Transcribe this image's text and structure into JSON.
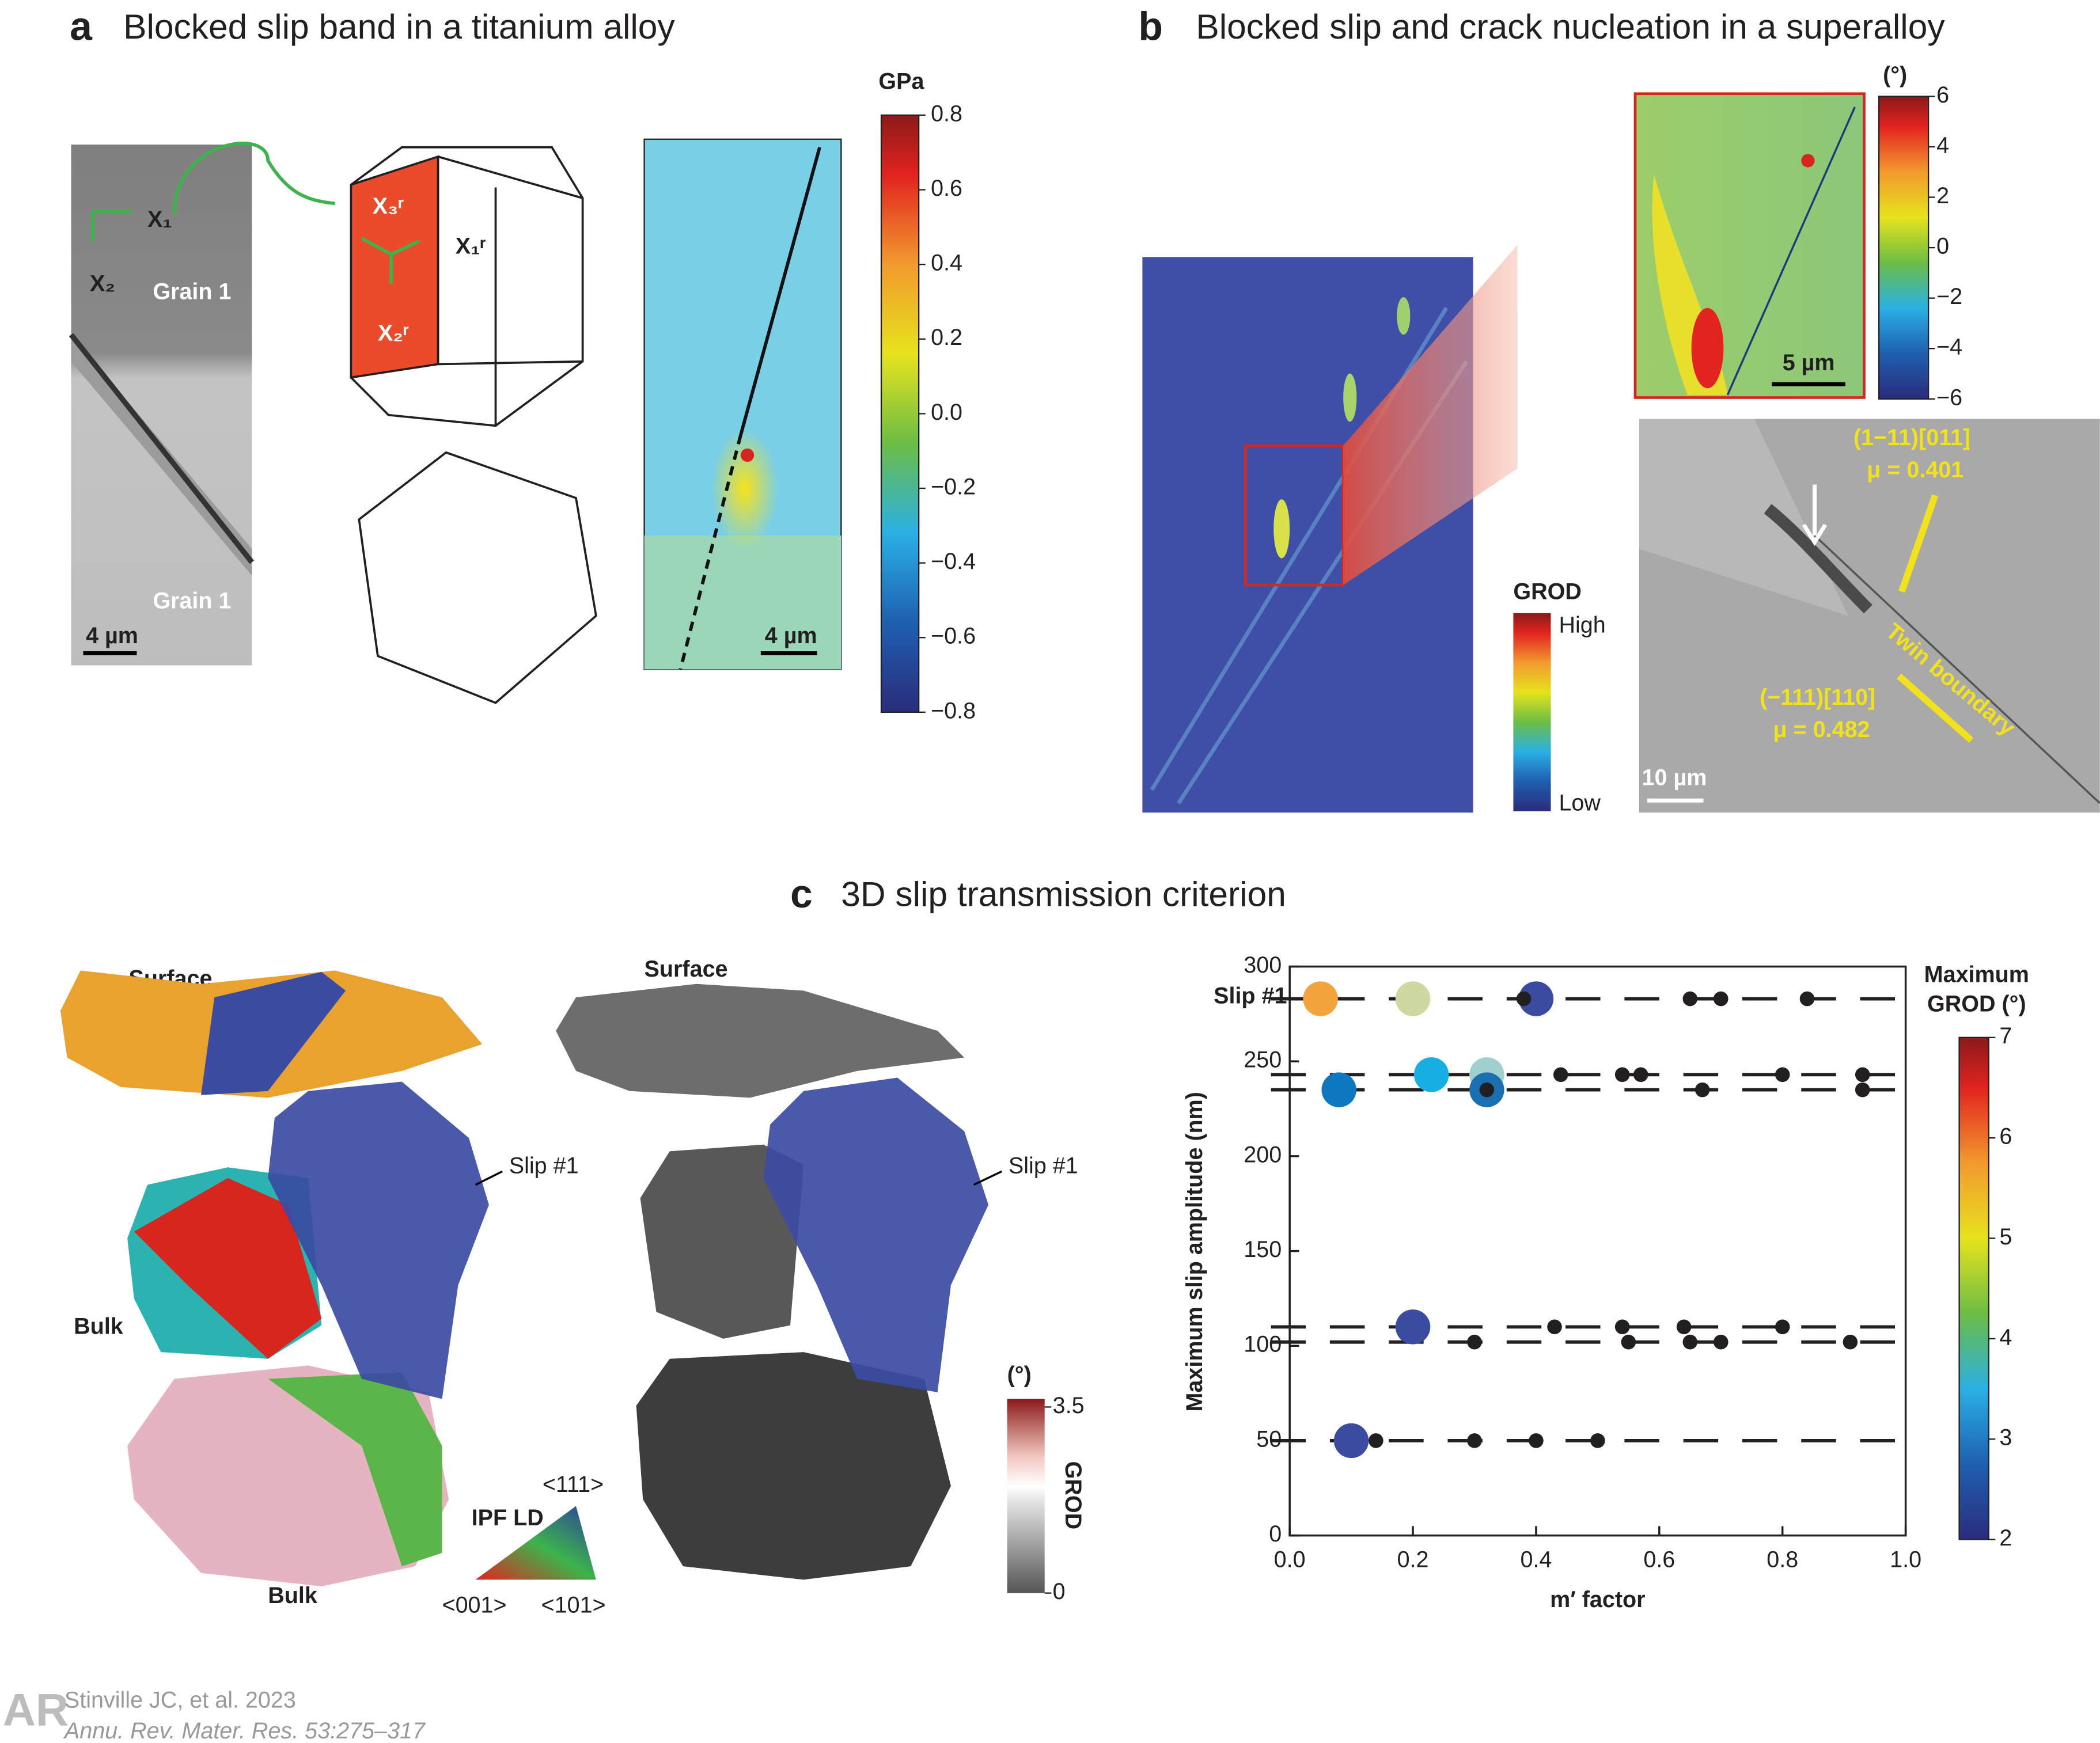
{
  "panel_a": {
    "label": "a",
    "title": "Blocked slip band in a titanium alloy",
    "axis_x1": "X₁",
    "axis_x2": "X₂",
    "grain_top": "Grain 1",
    "grain_bottom": "Grain 1",
    "scale_left": "4 µm",
    "crystal_x3": "X₃ʳ",
    "crystal_x1": "X₁ʳ",
    "crystal_x2": "X₂ʳ",
    "scale_right": "4 µm",
    "colorbar": {
      "title": "GPa",
      "lim": [
        -0.8,
        0.8
      ],
      "ticks": [
        0.8,
        0.6,
        0.4,
        0.2,
        {
          "value": 0,
          "label": "0.0"
        },
        {
          "value": -0.2,
          "label": "−0.2"
        },
        {
          "value": -0.4,
          "label": "−0.4"
        },
        {
          "value": -0.6,
          "label": "−0.6"
        },
        {
          "value": -0.8,
          "label": "−0.8"
        }
      ]
    }
  },
  "panel_b": {
    "label": "b",
    "title": "Blocked slip and crack nucleation in a superalloy",
    "grod_title": "GROD",
    "grod_high": "High",
    "grod_low": "Low",
    "inset_scale": "5 µm",
    "colorbar": {
      "title": "(°)",
      "lim": [
        -6,
        6
      ],
      "ticks": [
        6,
        4,
        2,
        0,
        {
          "value": -2,
          "label": "−2"
        },
        {
          "value": -4,
          "label": "−4"
        },
        {
          "value": -6,
          "label": "−6"
        }
      ]
    },
    "slip_system_1": "(1−11)[011]",
    "mu_1": "μ = 0.401",
    "slip_system_2": "(−111)[110]",
    "mu_2": "μ = 0.482",
    "twin_boundary": "Twin boundary",
    "sem_scale": "10 µm"
  },
  "panel_c": {
    "label": "c",
    "title": "3D slip transmission criterion",
    "surface_left": "Surface",
    "surface_right": "Surface",
    "slip_left": "Slip #1",
    "slip_right": "Slip #1",
    "bulk_middle": "Bulk",
    "bulk_bottom": "Bulk",
    "ipf_title": "IPF LD",
    "ipf_111": "<111>",
    "ipf_001": "<001>",
    "ipf_101": "<101>",
    "grod_bar": {
      "title": "(°)",
      "name": "GROD",
      "lim": [
        0,
        3.5
      ],
      "ticks": [
        3.5,
        0
      ]
    }
  },
  "chart_data": {
    "type": "scatter",
    "xlabel": "m′ factor",
    "ylabel": "Maximum slip amplitude (nm)",
    "annotation": "Slip #1",
    "xlim": [
      0,
      1
    ],
    "ylim": [
      0,
      300
    ],
    "xticks": [
      {
        "value": 0,
        "label": "0.0"
      },
      0.2,
      0.4,
      0.6,
      0.8,
      {
        "value": 1,
        "label": "1.0"
      }
    ],
    "yticks": [
      0,
      50,
      100,
      150,
      200,
      250,
      300
    ],
    "reference_lines": [
      283,
      243,
      235,
      110,
      102,
      50
    ],
    "colorbar": {
      "title_lines": [
        "Maximum",
        "GROD (°)"
      ],
      "lim": [
        2,
        7
      ],
      "ticks": [
        2,
        3,
        4,
        5,
        6,
        7
      ]
    },
    "series": [
      {
        "x": [
          0.05,
          0.2,
          0.4,
          0.08,
          0.23,
          0.32,
          0.32,
          0.2,
          0.1
        ],
        "values": [
          283,
          283,
          283,
          235,
          243,
          243,
          235,
          110,
          50
        ],
        "grod": [
          5.3,
          4.3,
          2.2,
          2.9,
          3.3,
          3.7,
          2.8,
          2.2,
          2.2
        ],
        "colors": [
          "#f3a33c",
          "#cdd9a1",
          "#3b4ba2",
          "#0d77bf",
          "#16aee3",
          "#9fcfcf",
          "#1a6fb0",
          "#3b4ba2",
          "#3b4ba2"
        ]
      },
      {
        "x": [
          0.38,
          0.65,
          0.7,
          0.84,
          0.44,
          0.54,
          0.57,
          0.8,
          0.93,
          0.32,
          0.67,
          0.93,
          0.43,
          0.54,
          0.64,
          0.8,
          0.3,
          0.55,
          0.65,
          0.7,
          0.91,
          0.14,
          0.3,
          0.4,
          0.5
        ],
        "values": [
          283,
          283,
          283,
          283,
          243,
          243,
          243,
          243,
          243,
          235,
          235,
          235,
          110,
          110,
          110,
          110,
          102,
          102,
          102,
          102,
          102,
          50,
          50,
          50,
          50
        ],
        "color": "#231f20"
      }
    ]
  },
  "citation": {
    "authors": "Stinville JC, et al. 2023",
    "journal": "Annu. Rev. Mater. Res. 53:275–317"
  }
}
